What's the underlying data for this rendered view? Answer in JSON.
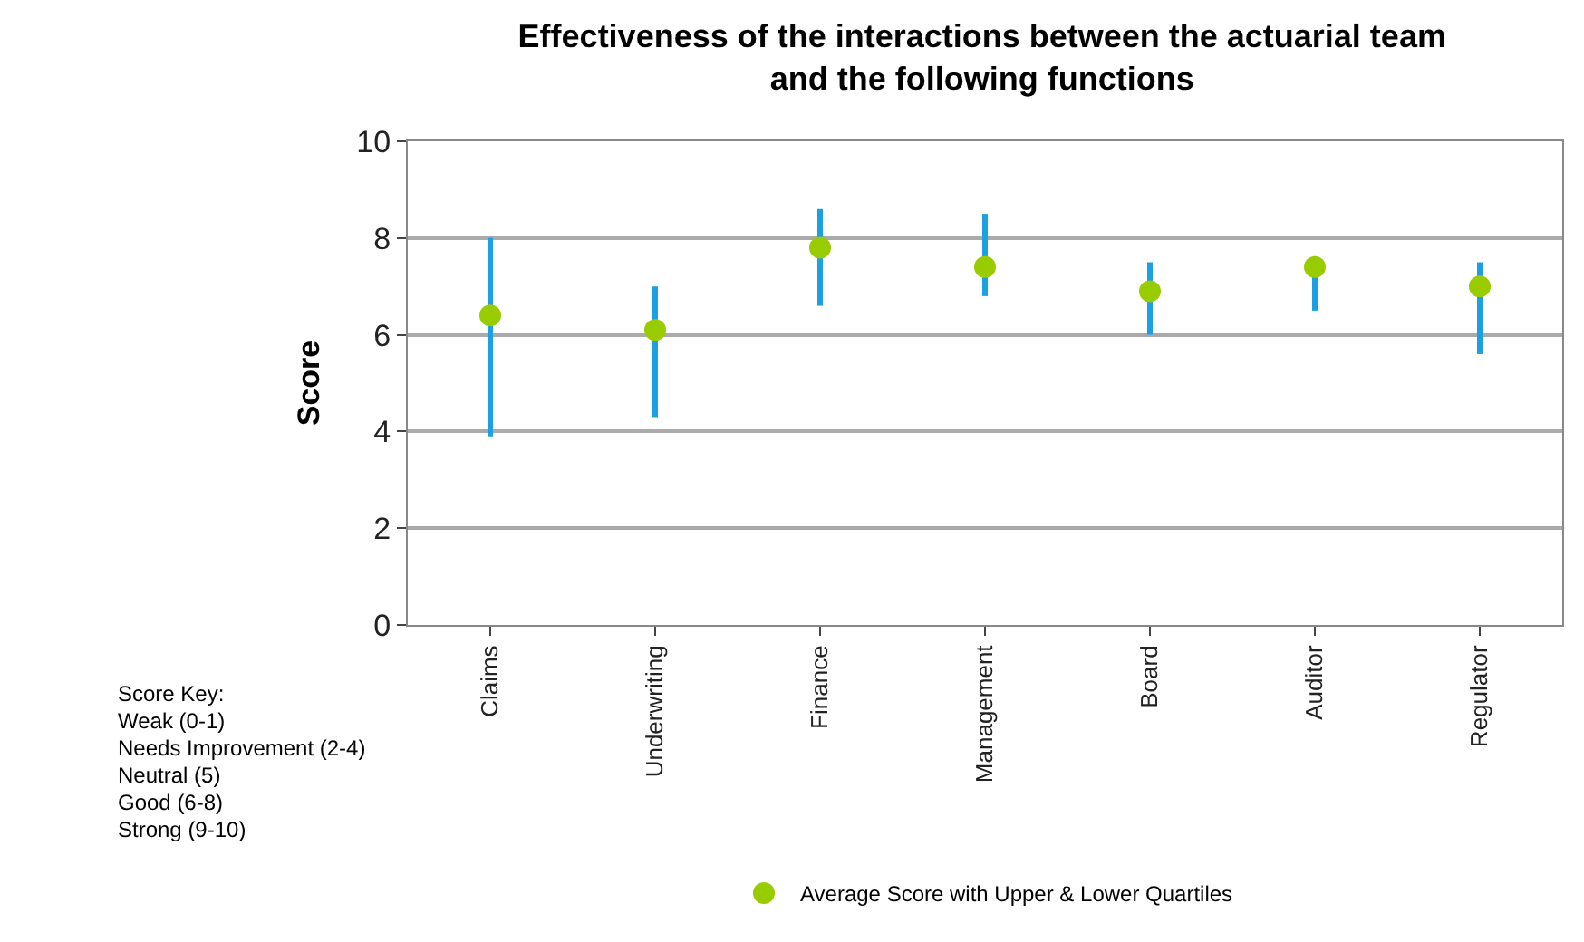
{
  "chart_data": {
    "type": "scatter",
    "title": "Effectiveness of the interactions between the actuarial team and the following functions",
    "ylabel": "Score",
    "categories": [
      "Claims",
      "Underwriting",
      "Finance",
      "Management",
      "Board",
      "Auditor",
      "Regulator"
    ],
    "series": [
      {
        "name": "Average Score with Upper & Lower Quartiles",
        "color": "#99cc00",
        "values": [
          6.4,
          6.1,
          7.8,
          7.4,
          6.9,
          7.4,
          7.0
        ],
        "errors": [
          [
            3.9,
            8.0
          ],
          [
            4.3,
            7.0
          ],
          [
            6.6,
            8.6
          ],
          [
            6.8,
            8.5
          ],
          [
            6.0,
            7.5
          ],
          [
            6.5,
            7.4
          ],
          [
            5.6,
            7.5
          ]
        ]
      }
    ],
    "ylim": [
      0,
      10
    ],
    "yticks": [
      0,
      2,
      4,
      6,
      8,
      10
    ],
    "grid": "y",
    "legend": "bottom",
    "marker": "circle",
    "annotations": [
      "Score Key:",
      "Weak (0-1)",
      "Needs Improvement (2-4)",
      "Neutral (5)",
      "Good (6-8)",
      "Strong (9-10)"
    ]
  }
}
